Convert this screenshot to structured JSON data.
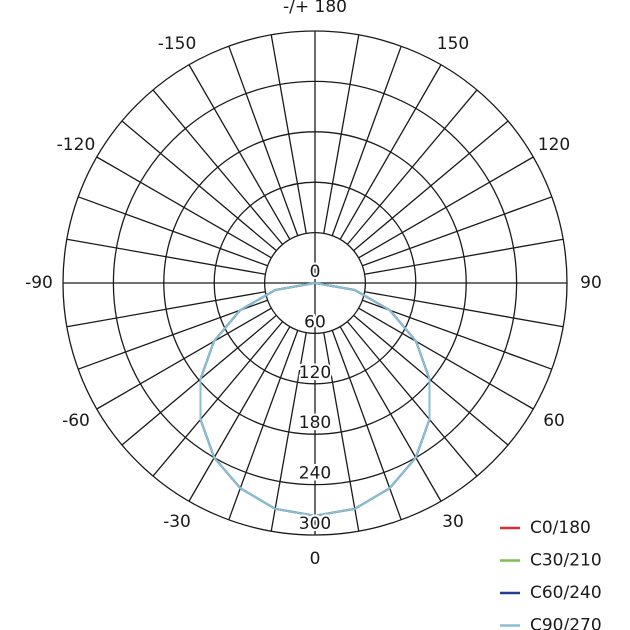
{
  "chart_data": {
    "type": "polar",
    "x": [
      -90,
      -80,
      -70,
      -60,
      -50,
      -40,
      -30,
      -20,
      -10,
      0,
      10,
      20,
      30,
      40,
      50,
      60,
      70,
      80,
      90
    ],
    "series": [
      {
        "name": "C0/180",
        "color": "#d9302c",
        "values": [
          0,
          48,
          95,
          139,
          178,
          212,
          240,
          260,
          273,
          277,
          273,
          260,
          240,
          212,
          178,
          139,
          95,
          48,
          0
        ]
      },
      {
        "name": "C30/210",
        "color": "#7cc04b",
        "values": [
          0,
          48,
          95,
          139,
          178,
          212,
          240,
          260,
          273,
          277,
          273,
          260,
          240,
          212,
          178,
          139,
          95,
          48,
          0
        ]
      },
      {
        "name": "C60/240",
        "color": "#1f3f8f",
        "values": [
          0,
          48,
          95,
          139,
          178,
          212,
          240,
          260,
          273,
          277,
          273,
          260,
          240,
          212,
          178,
          139,
          95,
          48,
          0
        ]
      },
      {
        "name": "C90/270",
        "color": "#86bfd6",
        "values": [
          0,
          48,
          95,
          139,
          178,
          212,
          240,
          260,
          273,
          277,
          273,
          260,
          240,
          212,
          178,
          139,
          95,
          48,
          0
        ]
      }
    ],
    "rlim": [
      0,
      300
    ],
    "rticks": [
      0,
      60,
      120,
      180,
      240,
      300
    ],
    "thetaticks": [
      {
        "value": 180,
        "label": "-/+ 180"
      },
      150,
      120,
      90,
      60,
      30,
      0,
      -30,
      -60,
      -90,
      -120,
      -150
    ],
    "theta_grid": [
      -170,
      -160,
      -150,
      -140,
      -130,
      -120,
      -110,
      -100,
      -90,
      -80,
      -70,
      -60,
      -50,
      -40,
      -30,
      -20,
      -10,
      0,
      10,
      20,
      30,
      40,
      50,
      60,
      70,
      80,
      90,
      100,
      110,
      120,
      130,
      140,
      150,
      160,
      170,
      180
    ],
    "legend": "lower right"
  }
}
